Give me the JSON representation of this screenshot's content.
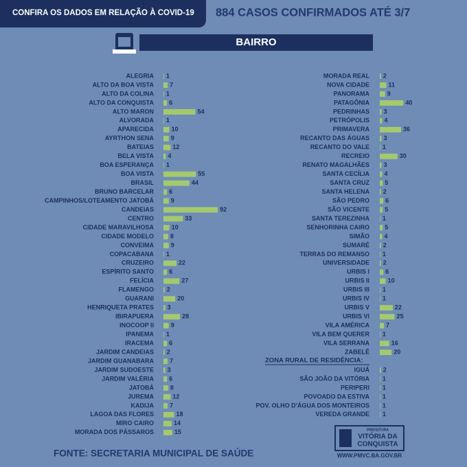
{
  "header": {
    "left": "CONFIRA OS DADOS EM RELAÇÃO À COVID-19",
    "right": "884 CASOS CONFIRMADOS ATÉ 3/7",
    "section": "BAIRRO"
  },
  "footer": {
    "source": "FONTE: SECRETARIA MUNICIPAL DE SAÚDE",
    "logo_top": "PREFEITURA",
    "logo_line1": "VITÓRIA DA",
    "logo_line2": "CONQUISTA",
    "url": "WWW.PMVC.BA.GOV.BR"
  },
  "chart_data": [
    {
      "type": "bar",
      "color": "#a5c96d",
      "categories": [
        "ALEGRIA",
        "ALTO DA BOA VISTA",
        "ALTO DA COLINA",
        "ALTO DA CONQUISTA",
        "ALTO MARON",
        "ALVORADA",
        "APARECIDA",
        "AYRTHON SENA",
        "BATEIAS",
        "BELA VISTA",
        "BOA ESPERANÇA",
        "BOA VISTA",
        "BRASIL",
        "BRUNO BARCELAR",
        "CAMPINHOS/LOTEAMENTO JATOBÁ",
        "CANDEIAS",
        "CENTRO",
        "CIDADE MARAVILHOSA",
        "CIDADE MODELO",
        "CONVEIMA",
        "COPACABANA",
        "CRUZEIRO",
        "ESPÍRITO SANTO",
        "FELÍCIA",
        "FLAMENGO",
        "GUARANI",
        "HENRIQUETA PRATES",
        "IBIRAPUERA",
        "INOCOOP II",
        "IPANEMA",
        "IRACEMA",
        "JARDIM CANDEIAS",
        "JARDIM GUANABARA",
        "JARDIM SUDOESTE",
        "JARDIM VALÉRIA",
        "JATOBÁ",
        "JUREMA",
        "KADIJA",
        "LAGOA DAS FLORES",
        "MIRO CAIRO",
        "MORADA DOS PÁSSAROS"
      ],
      "values": [
        1,
        7,
        1,
        6,
        54,
        1,
        10,
        9,
        12,
        4,
        1,
        55,
        44,
        6,
        9,
        92,
        33,
        10,
        8,
        9,
        1,
        22,
        6,
        27,
        2,
        20,
        3,
        28,
        9,
        1,
        6,
        2,
        7,
        3,
        6,
        8,
        12,
        7,
        18,
        14,
        15
      ]
    },
    {
      "type": "bar",
      "color": "#a5c96d",
      "categories": [
        "MORADA REAL",
        "NOVA CIDADE",
        "PANORAMA",
        "PATAGÔNIA",
        "PEDRINHAS",
        "PETRÓPOLIS",
        "PRIMAVERA",
        "RECANTO DAS ÁGUAS",
        "RECANTO DO VALE",
        "RECREIO",
        "RENATO MAGALHÃES",
        "SANTA CECÍLIA",
        "SANTA CRUZ",
        "SANTA HELENA",
        "SÃO PEDRO",
        "SÃO VICENTE",
        "SANTA TEREZINHA",
        "SENHORINHA CAIRO",
        "SIMÃO",
        "SUMARÉ",
        "TERRAS DO REMANSO",
        "UNIVERSIDADE",
        "URBIS I",
        "URBIS II",
        "URBIS III",
        "URBIS IV",
        "URBIS V",
        "URBIS VI",
        "VILA AMÉRICA",
        "VILA BEM QUERER",
        "VILA SERRANA",
        "ZABELÊ"
      ],
      "values": [
        2,
        11,
        9,
        40,
        3,
        4,
        36,
        3,
        1,
        30,
        3,
        4,
        5,
        2,
        6,
        5,
        1,
        5,
        4,
        2,
        1,
        2,
        6,
        10,
        1,
        1,
        22,
        25,
        7,
        1,
        16,
        20
      ]
    },
    {
      "type": "bar",
      "color": "#a5c96d",
      "title": "ZONA RURAL DE RESIDÊNCIA:",
      "categories": [
        "IGUÁ",
        "SÃO JOÃO DA VITÓRIA",
        "PERIPERI",
        "POVOADO DA ESTIVA",
        "POV. OLHO D'ÁGUA DOS MONTEIROS",
        "VEREDA GRANDE"
      ],
      "values": [
        2,
        1,
        1,
        1,
        1,
        1
      ]
    }
  ]
}
